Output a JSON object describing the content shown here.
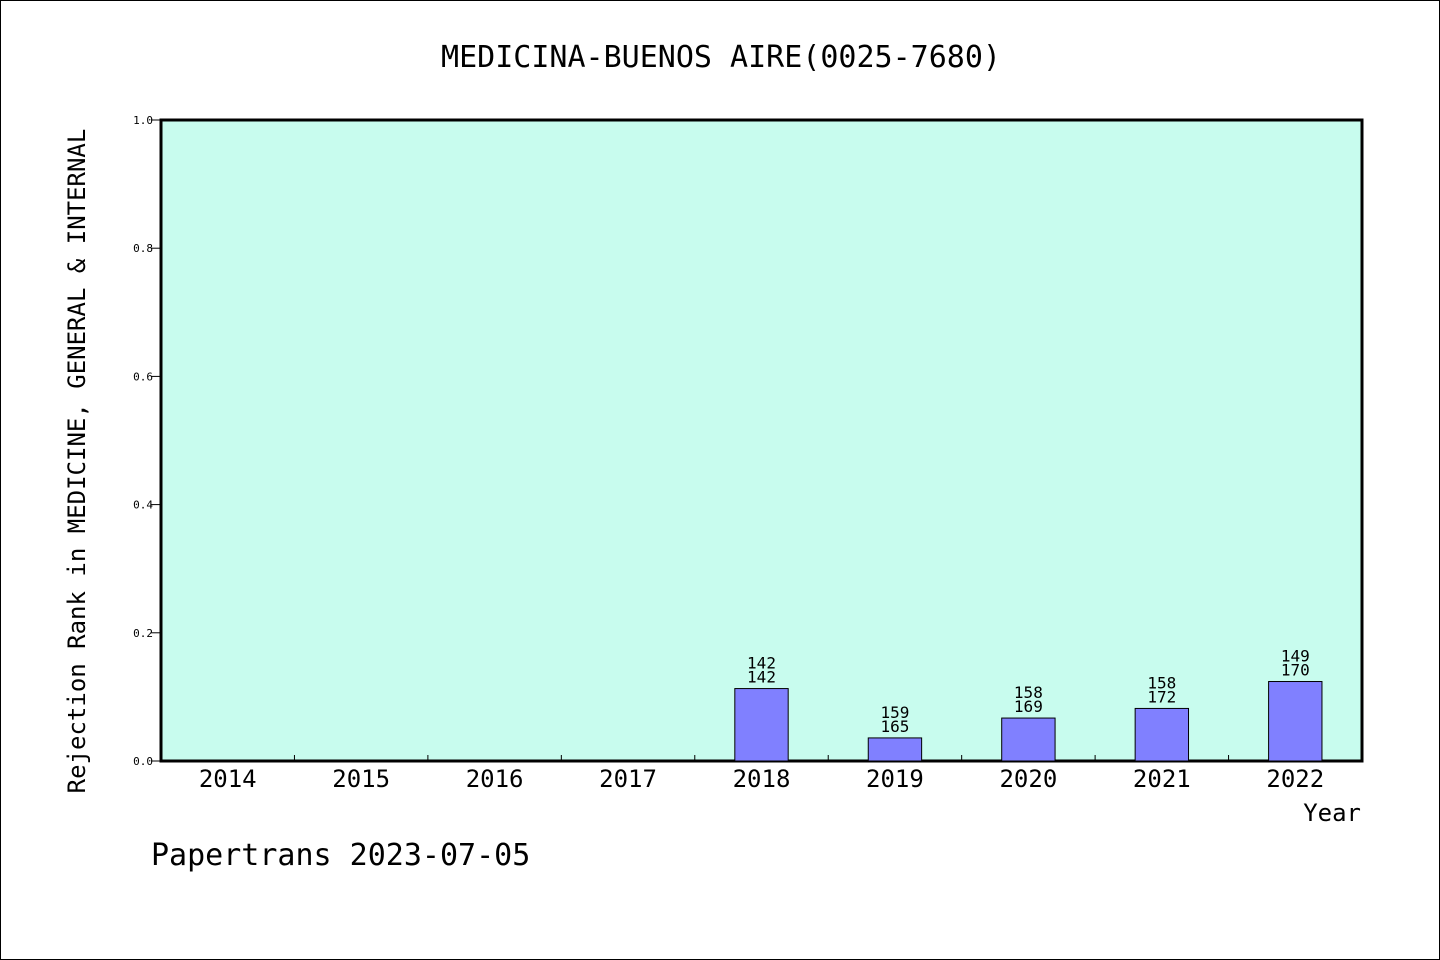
{
  "chart_data": {
    "type": "bar",
    "title": "MEDICINA-BUENOS AIRE(0025-7680)",
    "xlabel": "Year",
    "ylabel": "Rejection Rank in MEDICINE, GENERAL & INTERNAL",
    "categories": [
      "2014",
      "2015",
      "2016",
      "2017",
      "2018",
      "2019",
      "2020",
      "2021",
      "2022"
    ],
    "values": [
      null,
      null,
      null,
      null,
      0.113,
      0.036,
      0.067,
      0.082,
      0.124
    ],
    "bar_labels": [
      null,
      null,
      null,
      null,
      [
        "142",
        "142"
      ],
      [
        "159",
        "165"
      ],
      [
        "158",
        "169"
      ],
      [
        "158",
        "172"
      ],
      [
        "149",
        "170"
      ]
    ],
    "yticks": [
      "0.0",
      "0.2",
      "0.4",
      "0.6",
      "0.8",
      "1.0"
    ],
    "ylim": [
      0,
      1.0
    ],
    "grid": false,
    "legend": "none",
    "plot_background": "#c8fcee",
    "bar_color": "#8080ff"
  },
  "footer": "Papertrans 2023-07-05"
}
